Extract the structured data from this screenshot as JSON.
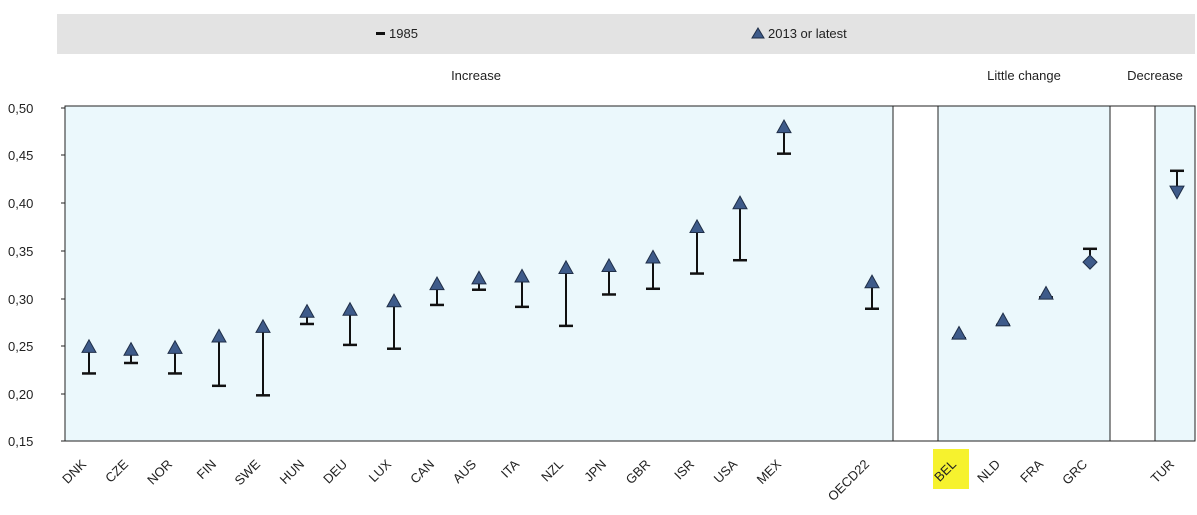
{
  "chart_data": {
    "type": "range",
    "legend": {
      "items": [
        {
          "name": "1985",
          "marker": "dash"
        },
        {
          "name": "2013 or latest",
          "marker": "triangle"
        }
      ],
      "placement": "top"
    },
    "groups": [
      {
        "label": "Increase"
      },
      {
        "label": "Little change"
      },
      {
        "label": "Decrease"
      }
    ],
    "y_ticks": [
      "0,50",
      "0,45",
      "0,40",
      "0,35",
      "0,30",
      "0,25",
      "0,20",
      "0,15"
    ],
    "ylim": [
      0.15,
      0.5
    ],
    "points": [
      {
        "country": "DNK",
        "group": 0,
        "v1985": 0.221,
        "v2013": 0.249
      },
      {
        "country": "CZE",
        "group": 0,
        "v1985": 0.232,
        "v2013": 0.246
      },
      {
        "country": "NOR",
        "group": 0,
        "v1985": 0.221,
        "v2013": 0.248
      },
      {
        "country": "FIN",
        "group": 0,
        "v1985": 0.208,
        "v2013": 0.26
      },
      {
        "country": "SWE",
        "group": 0,
        "v1985": 0.198,
        "v2013": 0.27
      },
      {
        "country": "HUN",
        "group": 0,
        "v1985": 0.273,
        "v2013": 0.286
      },
      {
        "country": "DEU",
        "group": 0,
        "v1985": 0.251,
        "v2013": 0.288
      },
      {
        "country": "LUX",
        "group": 0,
        "v1985": 0.247,
        "v2013": 0.297
      },
      {
        "country": "CAN",
        "group": 0,
        "v1985": 0.293,
        "v2013": 0.315
      },
      {
        "country": "AUS",
        "group": 0,
        "v1985": 0.309,
        "v2013": 0.321
      },
      {
        "country": "ITA",
        "group": 0,
        "v1985": 0.291,
        "v2013": 0.323
      },
      {
        "country": "NZL",
        "group": 0,
        "v1985": 0.271,
        "v2013": 0.332
      },
      {
        "country": "JPN",
        "group": 0,
        "v1985": 0.304,
        "v2013": 0.334
      },
      {
        "country": "GBR",
        "group": 0,
        "v1985": 0.31,
        "v2013": 0.343
      },
      {
        "country": "ISR",
        "group": 0,
        "v1985": 0.326,
        "v2013": 0.375
      },
      {
        "country": "USA",
        "group": 0,
        "v1985": 0.34,
        "v2013": 0.4
      },
      {
        "country": "MEX",
        "group": 0,
        "v1985": 0.452,
        "v2013": 0.48
      },
      {
        "country": "OECD22",
        "group": 0,
        "v1985": 0.289,
        "v2013": 0.317
      },
      {
        "country": "BEL",
        "group": 1,
        "v1985": 0.258,
        "v2013": 0.263,
        "highlight": true
      },
      {
        "country": "NLD",
        "group": 1,
        "v1985": 0.272,
        "v2013": 0.277
      },
      {
        "country": "FRA",
        "group": 1,
        "v1985": 0.301,
        "v2013": 0.305
      },
      {
        "country": "GRC",
        "group": 1,
        "v1985": 0.352,
        "v2013": 0.338
      },
      {
        "country": "TUR",
        "group": 2,
        "v1985": 0.434,
        "v2013": 0.412
      }
    ],
    "colors": {
      "panel_bg": "#ebf8fc",
      "marker_fill": "#3e5b8a",
      "marker_stroke": "#1f2e47",
      "bar": "#111111",
      "legend_bg": "#e3e3e3",
      "highlight": "#f6f22e"
    },
    "grid": false
  }
}
